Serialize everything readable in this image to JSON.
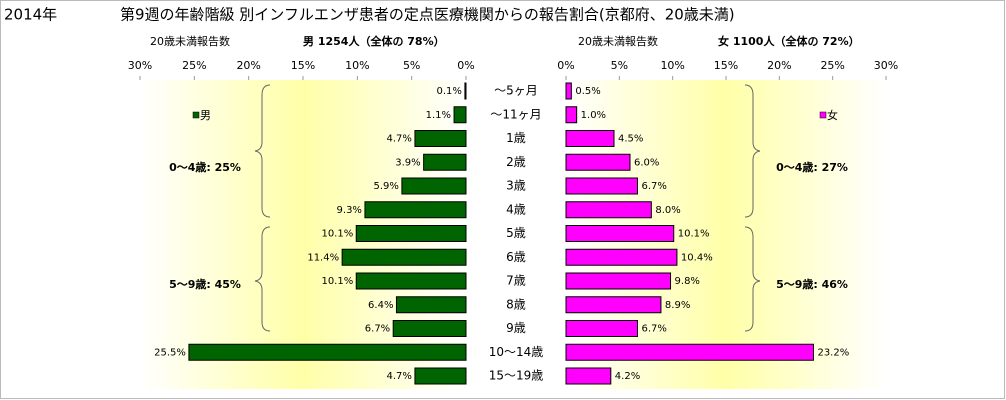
{
  "title": "2014年",
  "subtitle": "第9週の年齢階級 別インフルエンザ患者の定点医療機関からの報告割合(京都府、20歳未満)",
  "chart_data": [
    {
      "type": "bar",
      "orientation": "horizontal",
      "reversed": true,
      "subtitle": "20歳未満報告数",
      "header": "男 1254人（全体の 78%）",
      "categories": [
        "～5ヶ月",
        "～11ヶ月",
        "1歳",
        "2歳",
        "3歳",
        "4歳",
        "5歳",
        "6歳",
        "7歳",
        "8歳",
        "9歳",
        "10～14歳",
        "15～19歳"
      ],
      "xlim": [
        0,
        30
      ],
      "xticks": [
        {
          "value": 0,
          "label": "0%"
        },
        {
          "value": 5,
          "label": "5%"
        },
        {
          "value": 10,
          "label": "10%"
        },
        {
          "value": 15,
          "label": "15%"
        },
        {
          "value": 20,
          "label": "20%"
        },
        {
          "value": 25,
          "label": "25%"
        },
        {
          "value": 30,
          "label": "30%"
        }
      ],
      "legend": "upper left",
      "series": [
        {
          "name": "男",
          "color": "#006400",
          "values": [
            0.1,
            1.1,
            4.7,
            3.9,
            5.9,
            9.3,
            10.1,
            11.4,
            10.1,
            6.4,
            6.7,
            25.5,
            4.7
          ],
          "value_labels": [
            "0.1%",
            "1.1%",
            "4.7%",
            "3.9%",
            "5.9%",
            "9.3%",
            "10.1%",
            "11.4%",
            "10.1%",
            "6.4%",
            "6.7%",
            "25.5%",
            "4.7%"
          ]
        }
      ],
      "annotations": [
        "0～4歳: 25%",
        "5～9歳: 45%"
      ]
    },
    {
      "type": "bar",
      "orientation": "horizontal",
      "reversed": false,
      "subtitle": "20歳未満報告数",
      "header": "女 1100人（全体の 72%）",
      "xlim": [
        0,
        30
      ],
      "xticks": [
        {
          "value": 0,
          "label": "0%"
        },
        {
          "value": 5,
          "label": "5%"
        },
        {
          "value": 10,
          "label": "10%"
        },
        {
          "value": 15,
          "label": "15%"
        },
        {
          "value": 20,
          "label": "20%"
        },
        {
          "value": 25,
          "label": "25%"
        },
        {
          "value": 30,
          "label": "30%"
        }
      ],
      "legend": "upper right",
      "series": [
        {
          "name": "女",
          "color": "#ff00ff",
          "values": [
            0.5,
            1.0,
            4.5,
            6.0,
            6.7,
            8.0,
            10.1,
            10.4,
            9.8,
            8.9,
            6.7,
            23.2,
            4.2
          ],
          "value_labels": [
            "0.5%",
            "1.0%",
            "4.5%",
            "6.0%",
            "6.7%",
            "8.0%",
            "10.1%",
            "10.4%",
            "9.8%",
            "8.9%",
            "6.7%",
            "23.2%",
            "4.2%"
          ]
        }
      ],
      "annotations": [
        "0～4歳: 27%",
        "5～9歳: 46%"
      ]
    }
  ]
}
